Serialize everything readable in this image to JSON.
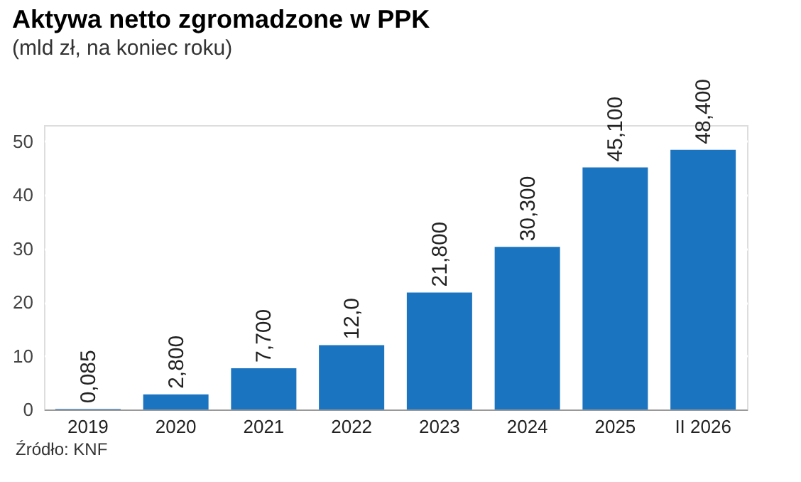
{
  "chart_data": {
    "type": "bar",
    "title": "Aktywa netto zgromadzone w PPK",
    "subtitle": "(mld zł, na koniec roku)",
    "categories": [
      "2019",
      "2020",
      "2021",
      "2022",
      "2023",
      "2024",
      "2025",
      "II 2026"
    ],
    "values": [
      0.085,
      2.8,
      7.7,
      12.0,
      21.8,
      30.3,
      45.1,
      48.4
    ],
    "value_labels": [
      "0,085",
      "2,800",
      "7,700",
      "12,0",
      "21,800",
      "30,300",
      "45,100",
      "48,400"
    ],
    "color": "#1b74bf",
    "ylim": [
      0,
      53
    ],
    "yticks": [
      0,
      10,
      20,
      30,
      40,
      50
    ],
    "grid": "y",
    "annotations": [
      "Źródło: KNF"
    ]
  }
}
